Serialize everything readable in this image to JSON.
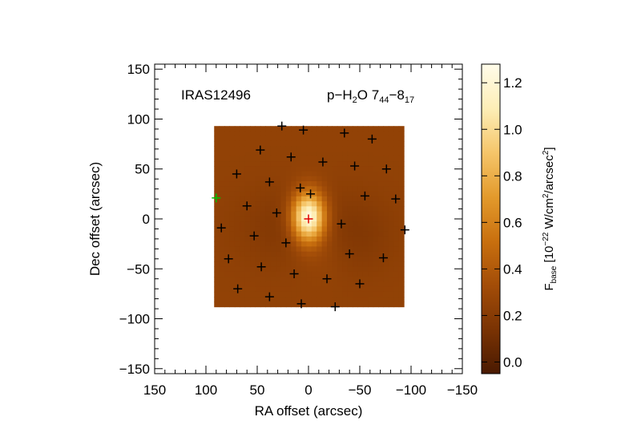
{
  "chart_data": {
    "type": "heatmap",
    "labels": {
      "source": "IRAS12496",
      "line_prefix": "p−H",
      "line_sub1": "2",
      "line_mid": "O 7",
      "line_sub2": "44",
      "line_dash": "−8",
      "line_sub3": "17"
    },
    "xlabel": "RA offset (arcsec)",
    "ylabel": "Dec offset (arcsec)",
    "colorbar_label": {
      "main": "F",
      "sub": "base",
      "unit_a": " [10",
      "unit_exp": "−22",
      "unit_b": " W/cm",
      "unit_exp2": "2",
      "unit_c": "/arcsec",
      "unit_exp3": "2",
      "unit_d": "]"
    },
    "xlim": [
      150,
      -150
    ],
    "ylim": [
      -155,
      155
    ],
    "x_ticks": [
      150,
      100,
      50,
      0,
      -50,
      -100,
      -150
    ],
    "x_tick_labels": [
      "150",
      "100",
      "50",
      "0",
      "−50",
      "−100",
      "−150"
    ],
    "y_ticks": [
      150,
      100,
      50,
      0,
      -50,
      -100,
      -150
    ],
    "y_tick_labels": [
      "150",
      "100",
      "50",
      "0",
      "−50",
      "−100",
      "−150"
    ],
    "colorbar_range": [
      -0.05,
      1.28
    ],
    "colorbar_ticks": [
      0.0,
      0.2,
      0.4,
      0.6,
      0.8,
      1.0,
      1.2
    ],
    "colorbar_tick_labels": [
      "0.0",
      "0.2",
      "0.4",
      "0.6",
      "0.8",
      "1.0",
      "1.2"
    ],
    "colormap": [
      "#4a1a02",
      "#7a3303",
      "#a34d08",
      "#c9700f",
      "#e39a2c",
      "#f5c56a",
      "#fdeeb7",
      "#fffcea"
    ],
    "map_extent": {
      "x": [
        92,
        -93
      ],
      "y": [
        -88,
        93
      ]
    },
    "map_grid": {
      "nx": 37,
      "ny": 36
    },
    "map_model": {
      "base": 0.25,
      "components": [
        {
          "x": 0,
          "y": 2,
          "sx": 11,
          "sy": 17,
          "amp": 1.02
        },
        {
          "x": 22,
          "y": -8,
          "sx": 35,
          "sy": 28,
          "amp": -0.07
        },
        {
          "x": -45,
          "y": -15,
          "sx": 28,
          "sy": 28,
          "amp": -0.07
        },
        {
          "x": -12,
          "y": -30,
          "sx": 18,
          "sy": 22,
          "amp": 0.06
        }
      ]
    },
    "spaxels": [
      {
        "x": 26,
        "y": 93,
        "color": "black"
      },
      {
        "x": 5,
        "y": 89,
        "color": "black"
      },
      {
        "x": -35,
        "y": 86,
        "color": "black"
      },
      {
        "x": -62,
        "y": 80,
        "color": "black"
      },
      {
        "x": 47,
        "y": 69,
        "color": "black"
      },
      {
        "x": 17,
        "y": 62,
        "color": "black"
      },
      {
        "x": -14,
        "y": 57,
        "color": "black"
      },
      {
        "x": -45,
        "y": 53,
        "color": "black"
      },
      {
        "x": -76,
        "y": 50,
        "color": "black"
      },
      {
        "x": 70,
        "y": 45,
        "color": "black"
      },
      {
        "x": 38,
        "y": 37,
        "color": "black"
      },
      {
        "x": 8,
        "y": 31,
        "color": "black"
      },
      {
        "x": -2,
        "y": 25,
        "color": "black"
      },
      {
        "x": -55,
        "y": 23,
        "color": "black"
      },
      {
        "x": -85,
        "y": 20,
        "color": "black"
      },
      {
        "x": 90,
        "y": 21,
        "color": "green"
      },
      {
        "x": 60,
        "y": 13,
        "color": "black"
      },
      {
        "x": 31,
        "y": 6,
        "color": "black"
      },
      {
        "x": 0,
        "y": 0,
        "color": "red"
      },
      {
        "x": -32,
        "y": -5,
        "color": "black"
      },
      {
        "x": -94,
        "y": -11,
        "color": "black"
      },
      {
        "x": 85,
        "y": -9,
        "color": "black"
      },
      {
        "x": 53,
        "y": -17,
        "color": "black"
      },
      {
        "x": 22,
        "y": -24,
        "color": "black"
      },
      {
        "x": -40,
        "y": -35,
        "color": "black"
      },
      {
        "x": -73,
        "y": -39,
        "color": "black"
      },
      {
        "x": 78,
        "y": -40,
        "color": "black"
      },
      {
        "x": 46,
        "y": -48,
        "color": "black"
      },
      {
        "x": 14,
        "y": -55,
        "color": "black"
      },
      {
        "x": -18,
        "y": -60,
        "color": "black"
      },
      {
        "x": -50,
        "y": -65,
        "color": "black"
      },
      {
        "x": 69,
        "y": -70,
        "color": "black"
      },
      {
        "x": 38,
        "y": -78,
        "color": "black"
      },
      {
        "x": 7,
        "y": -85,
        "color": "black"
      },
      {
        "x": -26,
        "y": -88,
        "color": "black"
      }
    ]
  }
}
